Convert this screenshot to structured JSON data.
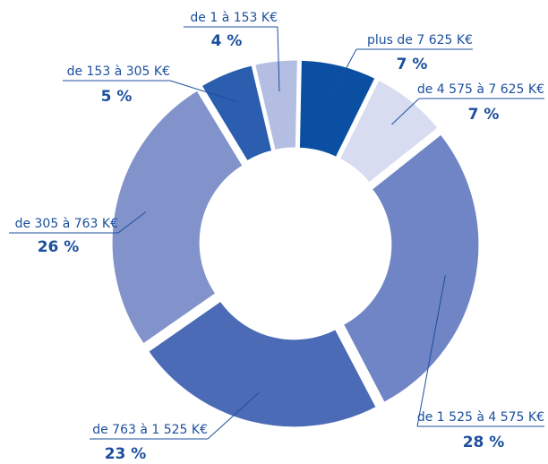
{
  "chart_data": {
    "type": "pie",
    "categories": [
      "plus de 7 625 K€",
      "de 4 575 à 7 625 K€",
      "de 1 525 à 4 575 K€",
      "de 763 à 1 525 K€",
      "de 305 à 763 K€",
      "de 153 à 305 K€",
      "de 1 à 153 K€"
    ],
    "values": [
      7,
      7,
      28,
      23,
      26,
      5,
      4
    ],
    "value_labels": [
      "7 %",
      "7 %",
      "28 %",
      "23 %",
      "26 %",
      "5 %",
      "4 %"
    ],
    "colors": [
      "#0b4fa3",
      "#d7dcf0",
      "#6f85c6",
      "#4c6bb6",
      "#8293cb",
      "#2b5eae",
      "#b4bee3"
    ]
  }
}
